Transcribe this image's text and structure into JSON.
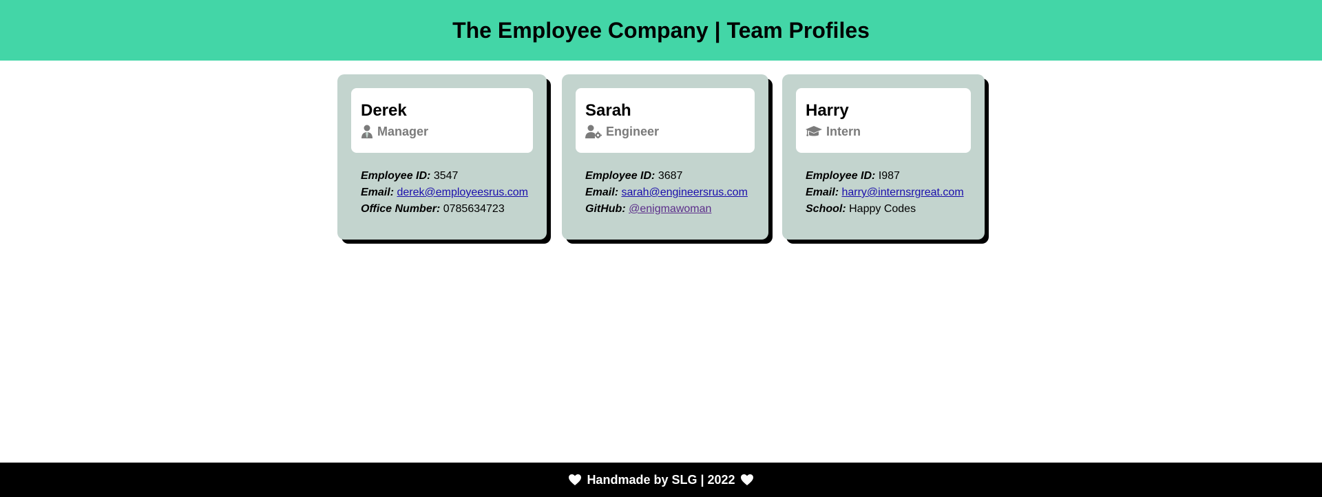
{
  "header": {
    "title": "The Employee Company | Team Profiles"
  },
  "cards": [
    {
      "name": "Derek",
      "role": "Manager",
      "role_icon": "user-tie-icon",
      "fields": [
        {
          "label": "Employee ID:",
          "value": "3547"
        },
        {
          "label": "Email:",
          "value": "derek@employeesrus.com"
        },
        {
          "label": "Office Number:",
          "value": "0785634723"
        }
      ]
    },
    {
      "name": "Sarah",
      "role": "Engineer",
      "role_icon": "user-gear-icon",
      "fields": [
        {
          "label": "Employee ID:",
          "value": "3687"
        },
        {
          "label": "Email:",
          "value": "sarah@engineersrus.com"
        },
        {
          "label": "GitHub:",
          "value": "@enigmawoman"
        }
      ]
    },
    {
      "name": "Harry",
      "role": "Intern",
      "role_icon": "graduation-cap-icon",
      "fields": [
        {
          "label": "Employee ID:",
          "value": "I987"
        },
        {
          "label": "Email:",
          "value": "harry@internsrgreat.com"
        },
        {
          "label": "School:",
          "value": "Happy Codes"
        }
      ]
    }
  ],
  "footer": {
    "text": "Handmade by SLG | 2022"
  },
  "colors": {
    "header_bg": "#43d6a7",
    "card_bg": "#c3d4ce",
    "footer_bg": "#000000",
    "link": "#1a0dab",
    "link_visited": "#5b2d8a",
    "role_text": "#7b7b7b"
  }
}
